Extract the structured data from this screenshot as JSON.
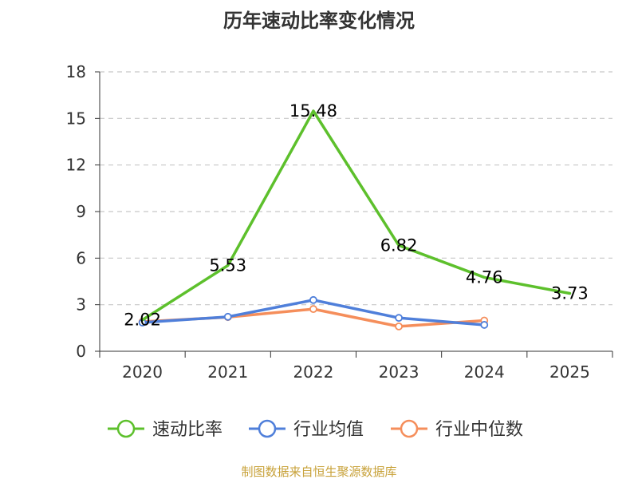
{
  "chart_data": {
    "type": "line",
    "title": "历年速动比率变化情况",
    "categories": [
      "2020",
      "2021",
      "2022",
      "2023",
      "2024",
      "2025"
    ],
    "ylim": [
      0,
      18
    ],
    "yticks": [
      0,
      3,
      6,
      9,
      12,
      15,
      18
    ],
    "grid": true,
    "legend_position": "bottom",
    "series": [
      {
        "name": "速动比率",
        "color": "#5dc02c",
        "values": [
          2.02,
          5.53,
          15.48,
          6.82,
          4.76,
          3.73
        ],
        "labels": [
          "2.02",
          "5.53",
          "15.48",
          "6.82",
          "4.76",
          "3.73"
        ]
      },
      {
        "name": "行业均值",
        "color": "#4f7fda",
        "values": [
          1.85,
          2.22,
          3.3,
          2.15,
          1.7,
          null
        ]
      },
      {
        "name": "行业中位数",
        "color": "#f58e5b",
        "values": [
          1.9,
          2.2,
          2.72,
          1.6,
          1.98,
          null
        ]
      }
    ]
  },
  "source": "制图数据来自恒生聚源数据库"
}
